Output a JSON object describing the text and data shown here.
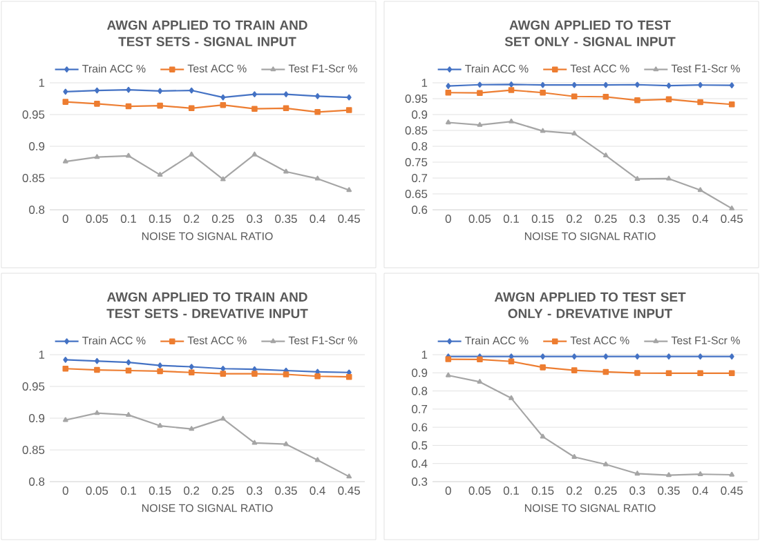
{
  "chart_data": [
    {
      "type": "line",
      "title": "AWGN APPLIED TO TRAIN AND TEST SETS - SIGNAL INPUT",
      "xlabel": "NOISE TO SIGNAL RATIO",
      "categories": [
        "0",
        "0.05",
        "0.1",
        "0.15",
        "0.2",
        "0.25",
        "0.3",
        "0.35",
        "0.4",
        "0.45"
      ],
      "ylim": [
        0.8,
        1
      ],
      "yticks": [
        0.8,
        0.85,
        0.9,
        0.95,
        1
      ],
      "grid": "y",
      "legend": "top",
      "series": [
        {
          "name": "Train ACC %",
          "color": "#4472c4",
          "marker": "diamond",
          "values": [
            0.986,
            0.988,
            0.989,
            0.987,
            0.988,
            0.977,
            0.982,
            0.982,
            0.979,
            0.977
          ]
        },
        {
          "name": "Test ACC %",
          "color": "#ed7d31",
          "marker": "square",
          "values": [
            0.97,
            0.967,
            0.963,
            0.964,
            0.96,
            0.965,
            0.959,
            0.96,
            0.954,
            0.957
          ]
        },
        {
          "name": "Test F1-Scr %",
          "color": "#a5a5a5",
          "marker": "triangle",
          "values": [
            0.876,
            0.883,
            0.885,
            0.855,
            0.887,
            0.848,
            0.887,
            0.86,
            0.849,
            0.831
          ]
        }
      ]
    },
    {
      "type": "line",
      "title": "AWGN APPLIED TO TEST SET ONLY - SIGNAL INPUT",
      "xlabel": "NOISE TO SIGNAL RATIO",
      "categories": [
        "0",
        "0.05",
        "0.1",
        "0.15",
        "0.2",
        "0.25",
        "0.3",
        "0.35",
        "0.4",
        "0.45"
      ],
      "ylim": [
        0.6,
        1
      ],
      "yticks": [
        0.6,
        0.65,
        0.7,
        0.75,
        0.8,
        0.85,
        0.9,
        0.95,
        1
      ],
      "grid": "y",
      "legend": "top",
      "series": [
        {
          "name": "Train ACC %",
          "color": "#4472c4",
          "marker": "diamond",
          "values": [
            0.99,
            0.994,
            0.995,
            0.993,
            0.993,
            0.993,
            0.994,
            0.991,
            0.993,
            0.992
          ]
        },
        {
          "name": "Test ACC %",
          "color": "#ed7d31",
          "marker": "square",
          "values": [
            0.969,
            0.968,
            0.977,
            0.969,
            0.957,
            0.956,
            0.945,
            0.948,
            0.939,
            0.932
          ]
        },
        {
          "name": "Test F1-Scr %",
          "color": "#a5a5a5",
          "marker": "triangle",
          "values": [
            0.875,
            0.867,
            0.878,
            0.848,
            0.84,
            0.771,
            0.697,
            0.698,
            0.662,
            0.604
          ]
        }
      ]
    },
    {
      "type": "line",
      "title": "AWGN APPLIED TO TRAIN AND TEST SETS - DREVATIVE INPUT",
      "xlabel": "NOISE TO SIGNAL RATIO",
      "categories": [
        "0",
        "0.05",
        "0.1",
        "0.15",
        "0.2",
        "0.25",
        "0.3",
        "0.35",
        "0.4",
        "0.45"
      ],
      "ylim": [
        0.8,
        1
      ],
      "yticks": [
        0.8,
        0.85,
        0.9,
        0.95,
        1
      ],
      "grid": "y",
      "legend": "top",
      "series": [
        {
          "name": "Train ACC %",
          "color": "#4472c4",
          "marker": "diamond",
          "values": [
            0.992,
            0.99,
            0.988,
            0.983,
            0.981,
            0.978,
            0.977,
            0.975,
            0.973,
            0.972
          ]
        },
        {
          "name": "Test ACC %",
          "color": "#ed7d31",
          "marker": "square",
          "values": [
            0.978,
            0.976,
            0.975,
            0.974,
            0.972,
            0.97,
            0.97,
            0.969,
            0.966,
            0.965
          ]
        },
        {
          "name": "Test F1-Scr %",
          "color": "#a5a5a5",
          "marker": "triangle",
          "values": [
            0.897,
            0.908,
            0.905,
            0.888,
            0.883,
            0.899,
            0.861,
            0.859,
            0.834,
            0.808
          ]
        }
      ]
    },
    {
      "type": "line",
      "title": "AWGN APPLIED TO TEST SET ONLY - DREVATIVE INPUT",
      "xlabel": "NOISE TO SIGNAL RATIO",
      "categories": [
        "0",
        "0.05",
        "0.1",
        "0.15",
        "0.2",
        "0.25",
        "0.3",
        "0.35",
        "0.4",
        "0.45"
      ],
      "ylim": [
        0.3,
        1
      ],
      "yticks": [
        0.3,
        0.4,
        0.5,
        0.6,
        0.7,
        0.8,
        0.9,
        1
      ],
      "grid": "y",
      "legend": "top",
      "series": [
        {
          "name": "Train ACC %",
          "color": "#4472c4",
          "marker": "diamond",
          "values": [
            0.99,
            0.99,
            0.99,
            0.99,
            0.99,
            0.99,
            0.99,
            0.99,
            0.99,
            0.99
          ]
        },
        {
          "name": "Test ACC %",
          "color": "#ed7d31",
          "marker": "square",
          "values": [
            0.975,
            0.974,
            0.963,
            0.93,
            0.914,
            0.905,
            0.899,
            0.898,
            0.898,
            0.898
          ]
        },
        {
          "name": "Test F1-Scr %",
          "color": "#a5a5a5",
          "marker": "triangle",
          "values": [
            0.886,
            0.85,
            0.76,
            0.548,
            0.436,
            0.395,
            0.344,
            0.336,
            0.341,
            0.338
          ]
        }
      ]
    }
  ]
}
